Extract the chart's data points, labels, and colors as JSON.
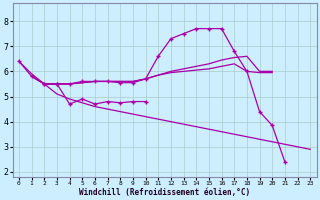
{
  "xlabel": "Windchill (Refroidissement éolien,°C)",
  "background_color": "#cceeff",
  "grid_color": "#aacccc",
  "line_color": "#aa00aa",
  "xlim": [
    -0.5,
    23.5
  ],
  "ylim": [
    1.8,
    8.7
  ],
  "yticks": [
    2,
    3,
    4,
    5,
    6,
    7,
    8
  ],
  "xticks": [
    0,
    1,
    2,
    3,
    4,
    5,
    6,
    7,
    8,
    9,
    10,
    11,
    12,
    13,
    14,
    15,
    16,
    17,
    18,
    19,
    20,
    21,
    22,
    23
  ],
  "line1_x": [
    0,
    1,
    2,
    3,
    4,
    5,
    6,
    7,
    8,
    9,
    10,
    11,
    12,
    13,
    14,
    15,
    16,
    17,
    18,
    19,
    20,
    21
  ],
  "line1_y": [
    6.4,
    5.8,
    5.5,
    5.5,
    5.5,
    5.6,
    5.6,
    5.6,
    5.55,
    5.55,
    5.7,
    6.6,
    7.3,
    7.5,
    7.7,
    7.7,
    7.7,
    6.8,
    6.0,
    4.4,
    3.85,
    2.4
  ],
  "line2_x": [
    2,
    3,
    4,
    5,
    6,
    7,
    8,
    9,
    10
  ],
  "line2_y": [
    5.5,
    5.5,
    4.7,
    4.9,
    4.7,
    4.8,
    4.75,
    4.8,
    4.8
  ],
  "line3_x": [
    1,
    2,
    3,
    4,
    5,
    6,
    7,
    8,
    9,
    10,
    11,
    12,
    13,
    14,
    15,
    16,
    17,
    18,
    19,
    20
  ],
  "line3_y": [
    5.8,
    5.5,
    5.5,
    5.5,
    5.55,
    5.6,
    5.6,
    5.6,
    5.6,
    5.7,
    5.85,
    6.0,
    6.1,
    6.2,
    6.3,
    6.45,
    6.55,
    6.6,
    6.0,
    6.0
  ],
  "line4_x": [
    1,
    2,
    3,
    4,
    5,
    6,
    7,
    8,
    9,
    10,
    11,
    12,
    13,
    14,
    15,
    16,
    17,
    18,
    19,
    20
  ],
  "line4_y": [
    5.8,
    5.5,
    5.5,
    5.5,
    5.55,
    5.6,
    5.6,
    5.6,
    5.6,
    5.7,
    5.85,
    5.95,
    6.0,
    6.05,
    6.1,
    6.2,
    6.3,
    6.0,
    5.95,
    5.95
  ],
  "line5_x": [
    0,
    1,
    2,
    3,
    4,
    5,
    6,
    7,
    8,
    9,
    10,
    11,
    12,
    13,
    14,
    15,
    16,
    17,
    18,
    19,
    20,
    21,
    22,
    23
  ],
  "line5_y": [
    6.4,
    5.9,
    5.5,
    5.1,
    4.9,
    4.75,
    4.6,
    4.5,
    4.4,
    4.3,
    4.2,
    4.1,
    4.0,
    3.9,
    3.8,
    3.7,
    3.6,
    3.5,
    3.4,
    3.3,
    3.2,
    3.1,
    3.0,
    2.9
  ]
}
